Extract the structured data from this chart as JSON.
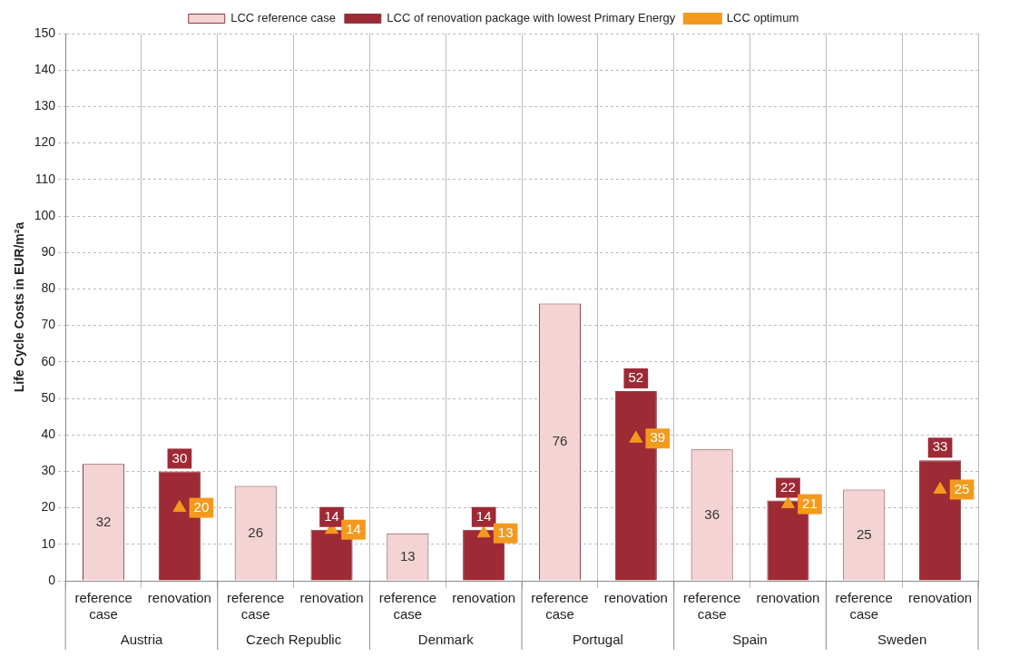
{
  "chart_data": {
    "type": "bar",
    "ylabel": "Life Cycle Costs in EUR/m²a",
    "categories": [
      "reference case",
      "renovation",
      "reference case",
      "renovation",
      "reference case",
      "renovation",
      "reference case",
      "renovation",
      "reference case",
      "renovation",
      "reference case",
      "renovation"
    ],
    "series": [
      {
        "name": "LCC reference case",
        "color": "#f3d3d3",
        "values": [
          32,
          null,
          26,
          null,
          13,
          null,
          76,
          null,
          36,
          null,
          25,
          null
        ]
      },
      {
        "name": "LCC of renovation package with lowest Primary Energy",
        "color": "#9e2a35",
        "values": [
          null,
          30,
          null,
          14,
          null,
          14,
          null,
          52,
          null,
          22,
          null,
          33
        ]
      },
      {
        "name": "LCC optimum",
        "type": "scatter",
        "marker": "triangle",
        "color": "#f39a1e",
        "values": [
          null,
          20,
          null,
          14,
          null,
          13,
          null,
          39,
          null,
          21,
          null,
          25
        ]
      }
    ],
    "annotations": [
      "Austria",
      "Czech Republic",
      "Denmark",
      "Portugal",
      "Spain",
      "Sweden"
    ],
    "ylim": [
      0,
      150
    ],
    "yticks": [
      0,
      10,
      20,
      30,
      40,
      50,
      60,
      70,
      80,
      90,
      100,
      110,
      120,
      130,
      140,
      150
    ],
    "grid": true,
    "legend": "top",
    "data_labels": true
  }
}
